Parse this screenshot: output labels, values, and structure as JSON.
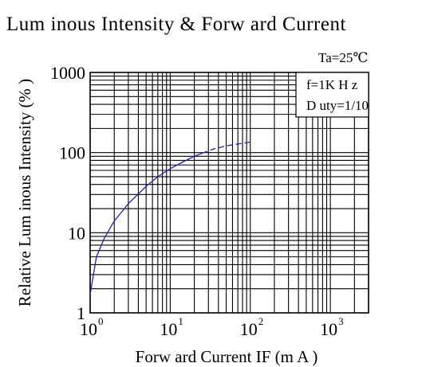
{
  "chart_data": {
    "type": "line",
    "title": "Lum inous Intensity & Forw ard Current",
    "xlabel": "Forw ard Current IF (m A )",
    "ylabel": "Relative Lum inous Intensity (% )",
    "x_scale": "log",
    "y_scale": "log",
    "xlim": [
      1,
      3000
    ],
    "ylim": [
      1,
      1000
    ],
    "x_ticks": [
      {
        "base": "10",
        "exp": "0",
        "value": 1
      },
      {
        "base": "10",
        "exp": "1",
        "value": 10
      },
      {
        "base": "10",
        "exp": "2",
        "value": 100
      },
      {
        "base": "10",
        "exp": "3",
        "value": 1000
      }
    ],
    "y_ticks": [
      {
        "label": "1",
        "value": 1
      },
      {
        "label": "10",
        "value": 10
      },
      {
        "label": "100",
        "value": 100
      },
      {
        "label": "1000",
        "value": 1000
      }
    ],
    "grid": true,
    "annotations": {
      "ta": "Ta=25℃",
      "freq": "f=1K H z",
      "duty": "D uty=1/10"
    },
    "series": [
      {
        "color": "#1f1fb8",
        "segments": [
          {
            "style": "solid",
            "x": [
              1,
              1.2,
              1.5,
              2,
              3,
              5,
              7,
              10,
              15,
              20,
              25
            ],
            "y": [
              1.7,
              5,
              8.5,
              14,
              23,
              38,
              50,
              63,
              78,
              90,
              98
            ]
          },
          {
            "style": "dashed",
            "x": [
              25,
              35,
              50,
              70,
              100
            ],
            "y": [
              98,
              111,
              121,
              128,
              135
            ]
          }
        ]
      }
    ]
  }
}
